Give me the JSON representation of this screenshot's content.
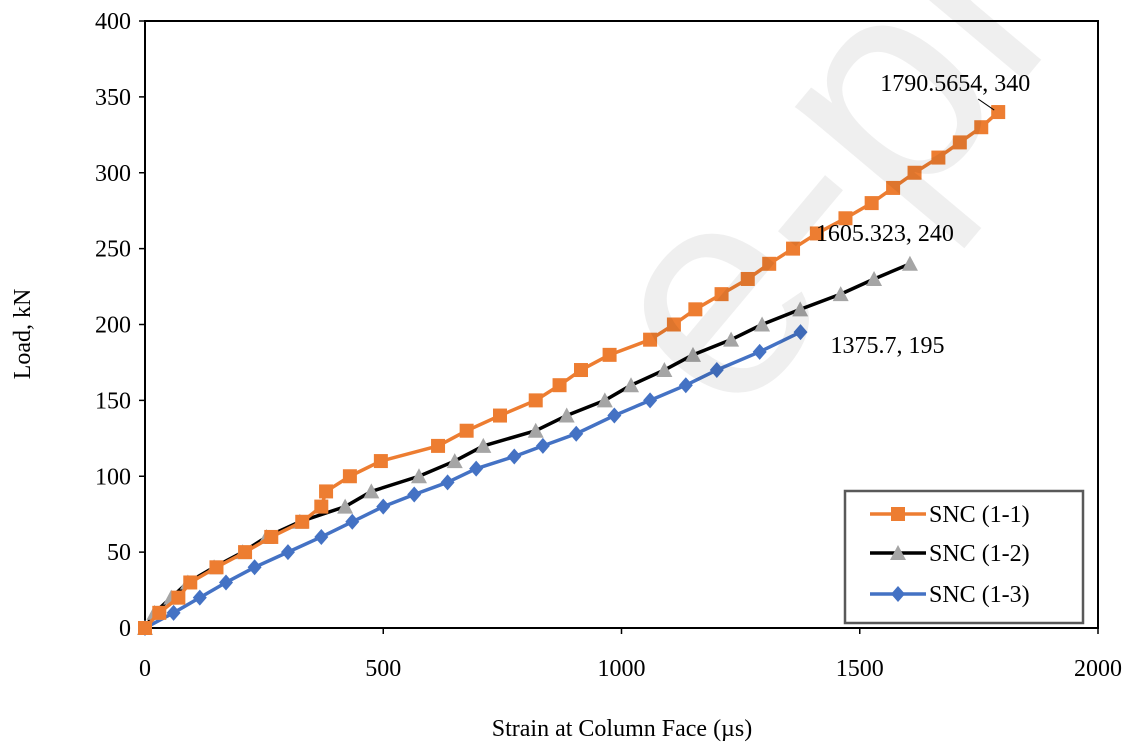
{
  "chart_data": {
    "type": "line",
    "xlabel": "Strain at  Column Face (µs)",
    "ylabel": "Load, kN",
    "xlim": [
      0,
      2000
    ],
    "ylim": [
      0,
      400
    ],
    "x_ticks": [
      "0",
      "500",
      "1000",
      "1500",
      "2000"
    ],
    "y_ticks": [
      "0",
      "50",
      "100",
      "150",
      "200",
      "250",
      "300",
      "350",
      "400"
    ],
    "grid": false,
    "legend_position": "bottom-right",
    "series": [
      {
        "name": "SNC (1-1)",
        "color": "#ED7D31",
        "marker": "square",
        "x": [
          0,
          30,
          70,
          95,
          150,
          210,
          265,
          330,
          370,
          380,
          430,
          495,
          615,
          675,
          745,
          820,
          870,
          915,
          975,
          1060,
          1110,
          1155,
          1210,
          1265,
          1310,
          1360,
          1410,
          1470,
          1525,
          1570,
          1615,
          1665,
          1710,
          1755,
          1790.5654
        ],
        "y": [
          0,
          10,
          20,
          30,
          40,
          50,
          60,
          70,
          80,
          90,
          100,
          110,
          120,
          130,
          140,
          150,
          160,
          170,
          180,
          190,
          200,
          210,
          220,
          230,
          240,
          250,
          260,
          270,
          280,
          290,
          300,
          310,
          320,
          330,
          340
        ]
      },
      {
        "name": "SNC (1-2)",
        "color": "#000000",
        "marker_color": "#A5A5A5",
        "marker": "triangle",
        "x": [
          0,
          20,
          55,
          90,
          145,
          205,
          255,
          325,
          420,
          475,
          575,
          650,
          710,
          820,
          885,
          965,
          1020,
          1090,
          1150,
          1230,
          1295,
          1375,
          1460,
          1530,
          1605.323
        ],
        "y": [
          0,
          10,
          20,
          30,
          40,
          50,
          60,
          70,
          80,
          90,
          100,
          110,
          120,
          130,
          140,
          150,
          160,
          170,
          180,
          190,
          200,
          210,
          220,
          230,
          240
        ]
      },
      {
        "name": "SNC (1-3)",
        "color": "#4472C4",
        "marker": "diamond",
        "x": [
          0,
          60,
          115,
          170,
          230,
          300,
          370,
          435,
          500,
          565,
          635,
          695,
          775,
          835,
          905,
          985,
          1060,
          1135,
          1200,
          1290,
          1375.7
        ],
        "y": [
          0,
          10,
          20,
          30,
          40,
          50,
          60,
          70,
          80,
          88,
          96,
          105,
          113,
          120,
          128,
          140,
          150,
          160,
          170,
          182,
          195
        ]
      }
    ],
    "annotations": [
      {
        "text": "1790.5654, 340",
        "x": 1790.5654,
        "y": 340,
        "leader": true
      },
      {
        "text": "1605.323, 240",
        "x": 1605.323,
        "y": 240,
        "leader": false
      },
      {
        "text": "1375.7, 195",
        "x": 1375.7,
        "y": 195,
        "leader": false
      }
    ]
  },
  "watermark": "e-proof"
}
